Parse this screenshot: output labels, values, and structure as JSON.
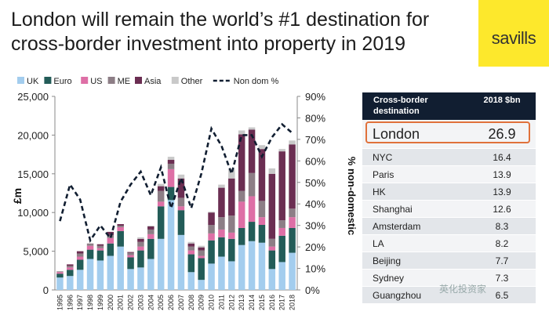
{
  "title": "London will remain the world’s #1 destination for cross-border investment into property in 2019",
  "logo_text": "savills",
  "watermark": "英化投资家",
  "colors": {
    "UK": "#a3cdee",
    "Euro": "#235c58",
    "US": "#de6fa6",
    "ME": "#8d7e86",
    "Asia": "#6b2e52",
    "Other": "#c9c9c9",
    "Non dom %": "#111e31",
    "table_header": "#111e31",
    "highlight": "#e0713b"
  },
  "table": {
    "header": [
      "Cross-border destination",
      "2018 $bn"
    ],
    "rows": [
      {
        "city": "London",
        "value": "26.9"
      },
      {
        "city": "NYC",
        "value": "16.4"
      },
      {
        "city": "Paris",
        "value": "13.9"
      },
      {
        "city": "HK",
        "value": "13.9"
      },
      {
        "city": "Shanghai",
        "value": "12.6"
      },
      {
        "city": "Amsterdam",
        "value": "8.3"
      },
      {
        "city": "LA",
        "value": "8.2"
      },
      {
        "city": "Beijing",
        "value": "7.7"
      },
      {
        "city": "Sydney",
        "value": "7.3"
      },
      {
        "city": "Guangzhou",
        "value": "6.5"
      }
    ]
  },
  "chart_data": {
    "type": "bar",
    "stacked": true,
    "ylabel": "£m",
    "y2label": "% non-domestic",
    "ylim": [
      0,
      25000
    ],
    "y2lim": [
      0,
      90
    ],
    "yticks": [
      "0",
      "5,000",
      "10,000",
      "15,000",
      "20,000",
      "25,000"
    ],
    "y2ticks": [
      "0%",
      "10%",
      "20%",
      "30%",
      "40%",
      "50%",
      "60%",
      "70%",
      "80%",
      "90%"
    ],
    "categories": [
      "1995",
      "1996",
      "1997",
      "1998",
      "1999",
      "2000",
      "2001",
      "2002",
      "2003",
      "2004",
      "2005",
      "2006",
      "2007",
      "2008",
      "2009",
      "2010",
      "2011",
      "2012",
      "2013",
      "2014",
      "2015",
      "2016",
      "2017",
      "2018"
    ],
    "series": [
      {
        "name": "UK",
        "values": [
          1600,
          1800,
          2600,
          4000,
          3800,
          4400,
          5600,
          2700,
          2900,
          4000,
          6600,
          11600,
          7100,
          2300,
          1300,
          3400,
          4300,
          3700,
          5800,
          6300,
          6100,
          2700,
          3600,
          4800
        ]
      },
      {
        "name": "Euro",
        "values": [
          500,
          800,
          1300,
          1200,
          1300,
          1600,
          2000,
          1500,
          2200,
          2600,
          4200,
          1700,
          3200,
          2300,
          2800,
          3000,
          2500,
          2900,
          2200,
          2500,
          2300,
          2400,
          3400,
          3200
        ]
      },
      {
        "name": "US",
        "values": [
          200,
          300,
          400,
          500,
          300,
          700,
          500,
          300,
          500,
          600,
          600,
          2300,
          500,
          500,
          300,
          900,
          1000,
          800,
          3400,
          3300,
          1000,
          500,
          1000,
          1400
        ]
      },
      {
        "name": "ME",
        "values": [
          100,
          200,
          400,
          300,
          300,
          400,
          200,
          300,
          600,
          600,
          1400,
          700,
          1100,
          500,
          700,
          1100,
          1600,
          2200,
          1400,
          3000,
          2100,
          1000,
          1000,
          1100
        ]
      },
      {
        "name": "Asia",
        "values": [
          0,
          200,
          300,
          0,
          200,
          400,
          200,
          100,
          400,
          400,
          600,
          500,
          2500,
          400,
          400,
          1600,
          3800,
          4800,
          7300,
          5600,
          6700,
          8400,
          8900,
          8300
        ]
      },
      {
        "name": "Other",
        "values": [
          0,
          0,
          0,
          0,
          0,
          0,
          0,
          0,
          200,
          100,
          300,
          400,
          500,
          200,
          200,
          100,
          400,
          1200,
          500,
          300,
          500,
          700,
          300,
          500
        ]
      }
    ],
    "line": {
      "name": "Non dom %",
      "values": [
        32,
        49,
        42,
        23,
        30,
        24,
        41,
        49,
        55,
        44,
        57,
        38,
        52,
        38,
        54,
        75,
        67,
        54,
        72,
        72,
        62,
        71,
        77,
        73
      ]
    },
    "legend": [
      "UK",
      "Euro",
      "US",
      "ME",
      "Asia",
      "Other",
      "Non dom %"
    ]
  }
}
